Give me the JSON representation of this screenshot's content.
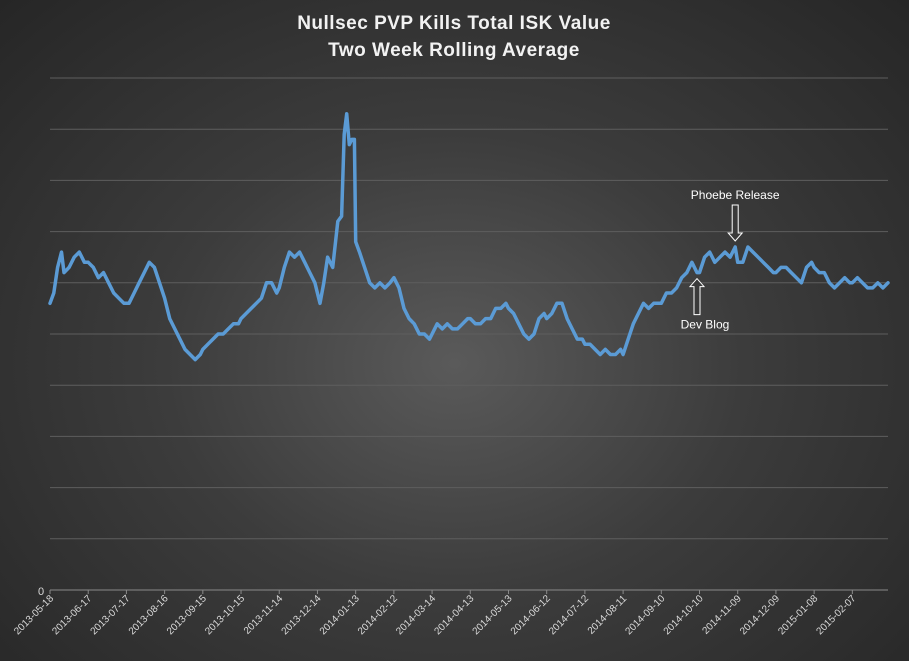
{
  "chart_data": {
    "type": "line",
    "title_lines": [
      "Nullsec  PVP  Kills  Total  ISK  Value",
      "Two  Week  Rolling  Average"
    ],
    "xlabel": "",
    "ylabel": "",
    "y_axis_label": "0",
    "x_tick_labels": [
      "2013-05-18",
      "2013-06-17",
      "2013-07-17",
      "2013-08-16",
      "2013-09-15",
      "2013-10-15",
      "2013-11-14",
      "2013-12-14",
      "2014-01-13",
      "2014-02-12",
      "2014-03-14",
      "2014-04-13",
      "2014-05-13",
      "2014-06-12",
      "2014-07-12",
      "2014-08-11",
      "2014-09-10",
      "2014-10-10",
      "2014-11-09",
      "2014-12-09",
      "2015-01-08",
      "2015-02-07"
    ],
    "ylim": [
      0,
      10
    ],
    "grid": true,
    "series": [
      {
        "color": "#5b9bd5",
        "points": [
          [
            "2013-05-18",
            5.6
          ],
          [
            "2013-05-21",
            5.8
          ],
          [
            "2013-05-24",
            6.3
          ],
          [
            "2013-05-27",
            6.6
          ],
          [
            "2013-05-29",
            6.2
          ],
          [
            "2013-06-02",
            6.3
          ],
          [
            "2013-06-06",
            6.5
          ],
          [
            "2013-06-10",
            6.6
          ],
          [
            "2013-06-14",
            6.4
          ],
          [
            "2013-06-17",
            6.4
          ],
          [
            "2013-06-21",
            6.3
          ],
          [
            "2013-06-25",
            6.1
          ],
          [
            "2013-06-29",
            6.2
          ],
          [
            "2013-07-03",
            6.0
          ],
          [
            "2013-07-07",
            5.8
          ],
          [
            "2013-07-11",
            5.7
          ],
          [
            "2013-07-15",
            5.6
          ],
          [
            "2013-07-19",
            5.6
          ],
          [
            "2013-07-23",
            5.8
          ],
          [
            "2013-07-27",
            6.0
          ],
          [
            "2013-07-31",
            6.2
          ],
          [
            "2013-08-04",
            6.4
          ],
          [
            "2013-08-08",
            6.3
          ],
          [
            "2013-08-12",
            6.0
          ],
          [
            "2013-08-16",
            5.7
          ],
          [
            "2013-08-20",
            5.3
          ],
          [
            "2013-08-24",
            5.1
          ],
          [
            "2013-08-28",
            4.9
          ],
          [
            "2013-09-01",
            4.7
          ],
          [
            "2013-09-05",
            4.6
          ],
          [
            "2013-09-09",
            4.5
          ],
          [
            "2013-09-13",
            4.6
          ],
          [
            "2013-09-15",
            4.7
          ],
          [
            "2013-09-19",
            4.8
          ],
          [
            "2013-09-23",
            4.9
          ],
          [
            "2013-09-27",
            5.0
          ],
          [
            "2013-10-01",
            5.0
          ],
          [
            "2013-10-05",
            5.1
          ],
          [
            "2013-10-09",
            5.2
          ],
          [
            "2013-10-13",
            5.2
          ],
          [
            "2013-10-15",
            5.3
          ],
          [
            "2013-10-19",
            5.4
          ],
          [
            "2013-10-23",
            5.5
          ],
          [
            "2013-10-27",
            5.6
          ],
          [
            "2013-10-31",
            5.7
          ],
          [
            "2013-11-04",
            6.0
          ],
          [
            "2013-11-08",
            6.0
          ],
          [
            "2013-11-12",
            5.8
          ],
          [
            "2013-11-14",
            5.9
          ],
          [
            "2013-11-18",
            6.3
          ],
          [
            "2013-11-22",
            6.6
          ],
          [
            "2013-11-26",
            6.5
          ],
          [
            "2013-11-30",
            6.6
          ],
          [
            "2013-12-04",
            6.4
          ],
          [
            "2013-12-08",
            6.2
          ],
          [
            "2013-12-12",
            6.0
          ],
          [
            "2013-12-14",
            5.8
          ],
          [
            "2013-12-16",
            5.6
          ],
          [
            "2013-12-19",
            6.0
          ],
          [
            "2013-12-22",
            6.5
          ],
          [
            "2013-12-26",
            6.3
          ],
          [
            "2013-12-30",
            7.2
          ],
          [
            "2014-01-02",
            7.3
          ],
          [
            "2014-01-04",
            8.9
          ],
          [
            "2014-01-06",
            9.3
          ],
          [
            "2014-01-08",
            8.7
          ],
          [
            "2014-01-10",
            8.8
          ],
          [
            "2014-01-12",
            8.8
          ],
          [
            "2014-01-13",
            6.8
          ],
          [
            "2014-01-16",
            6.6
          ],
          [
            "2014-01-20",
            6.3
          ],
          [
            "2014-01-24",
            6.0
          ],
          [
            "2014-01-28",
            5.9
          ],
          [
            "2014-02-01",
            6.0
          ],
          [
            "2014-02-05",
            5.9
          ],
          [
            "2014-02-09",
            6.0
          ],
          [
            "2014-02-12",
            6.1
          ],
          [
            "2014-02-16",
            5.9
          ],
          [
            "2014-02-20",
            5.5
          ],
          [
            "2014-02-24",
            5.3
          ],
          [
            "2014-02-28",
            5.2
          ],
          [
            "2014-03-04",
            5.0
          ],
          [
            "2014-03-08",
            5.0
          ],
          [
            "2014-03-12",
            4.9
          ],
          [
            "2014-03-14",
            5.0
          ],
          [
            "2014-03-18",
            5.2
          ],
          [
            "2014-03-22",
            5.1
          ],
          [
            "2014-03-26",
            5.2
          ],
          [
            "2014-03-30",
            5.1
          ],
          [
            "2014-04-03",
            5.1
          ],
          [
            "2014-04-07",
            5.2
          ],
          [
            "2014-04-11",
            5.3
          ],
          [
            "2014-04-13",
            5.3
          ],
          [
            "2014-04-17",
            5.2
          ],
          [
            "2014-04-21",
            5.2
          ],
          [
            "2014-04-25",
            5.3
          ],
          [
            "2014-04-29",
            5.3
          ],
          [
            "2014-05-03",
            5.5
          ],
          [
            "2014-05-07",
            5.5
          ],
          [
            "2014-05-11",
            5.6
          ],
          [
            "2014-05-13",
            5.5
          ],
          [
            "2014-05-17",
            5.4
          ],
          [
            "2014-05-21",
            5.2
          ],
          [
            "2014-05-25",
            5.0
          ],
          [
            "2014-05-29",
            4.9
          ],
          [
            "2014-06-02",
            5.0
          ],
          [
            "2014-06-06",
            5.3
          ],
          [
            "2014-06-10",
            5.4
          ],
          [
            "2014-06-12",
            5.3
          ],
          [
            "2014-06-16",
            5.4
          ],
          [
            "2014-06-20",
            5.6
          ],
          [
            "2014-06-24",
            5.6
          ],
          [
            "2014-06-28",
            5.3
          ],
          [
            "2014-07-02",
            5.1
          ],
          [
            "2014-07-06",
            4.9
          ],
          [
            "2014-07-10",
            4.9
          ],
          [
            "2014-07-12",
            4.8
          ],
          [
            "2014-07-16",
            4.8
          ],
          [
            "2014-07-20",
            4.7
          ],
          [
            "2014-07-24",
            4.6
          ],
          [
            "2014-07-28",
            4.7
          ],
          [
            "2014-08-01",
            4.6
          ],
          [
            "2014-08-05",
            4.6
          ],
          [
            "2014-08-09",
            4.7
          ],
          [
            "2014-08-11",
            4.6
          ],
          [
            "2014-08-15",
            4.9
          ],
          [
            "2014-08-19",
            5.2
          ],
          [
            "2014-08-23",
            5.4
          ],
          [
            "2014-08-27",
            5.6
          ],
          [
            "2014-08-31",
            5.5
          ],
          [
            "2014-09-04",
            5.6
          ],
          [
            "2014-09-08",
            5.6
          ],
          [
            "2014-09-10",
            5.6
          ],
          [
            "2014-09-14",
            5.8
          ],
          [
            "2014-09-18",
            5.8
          ],
          [
            "2014-09-22",
            5.9
          ],
          [
            "2014-09-26",
            6.1
          ],
          [
            "2014-09-30",
            6.2
          ],
          [
            "2014-10-04",
            6.4
          ],
          [
            "2014-10-08",
            6.2
          ],
          [
            "2014-10-10",
            6.2
          ],
          [
            "2014-10-14",
            6.5
          ],
          [
            "2014-10-18",
            6.6
          ],
          [
            "2014-10-22",
            6.4
          ],
          [
            "2014-10-26",
            6.5
          ],
          [
            "2014-10-30",
            6.6
          ],
          [
            "2014-11-03",
            6.5
          ],
          [
            "2014-11-07",
            6.7
          ],
          [
            "2014-11-09",
            6.4
          ],
          [
            "2014-11-13",
            6.4
          ],
          [
            "2014-11-17",
            6.7
          ],
          [
            "2014-11-21",
            6.6
          ],
          [
            "2014-11-25",
            6.5
          ],
          [
            "2014-11-29",
            6.4
          ],
          [
            "2014-12-03",
            6.3
          ],
          [
            "2014-12-07",
            6.2
          ],
          [
            "2014-12-09",
            6.2
          ],
          [
            "2014-12-13",
            6.3
          ],
          [
            "2014-12-17",
            6.3
          ],
          [
            "2014-12-21",
            6.2
          ],
          [
            "2014-12-25",
            6.1
          ],
          [
            "2014-12-29",
            6.0
          ],
          [
            "2015-01-02",
            6.3
          ],
          [
            "2015-01-06",
            6.4
          ],
          [
            "2015-01-08",
            6.3
          ],
          [
            "2015-01-12",
            6.2
          ],
          [
            "2015-01-16",
            6.2
          ],
          [
            "2015-01-20",
            6.0
          ],
          [
            "2015-01-24",
            5.9
          ],
          [
            "2015-01-28",
            6.0
          ],
          [
            "2015-02-01",
            6.1
          ],
          [
            "2015-02-05",
            6.0
          ],
          [
            "2015-02-07",
            6.0
          ],
          [
            "2015-02-11",
            6.1
          ],
          [
            "2015-02-15",
            6.0
          ],
          [
            "2015-02-19",
            5.9
          ],
          [
            "2015-02-23",
            5.9
          ],
          [
            "2015-02-27",
            6.0
          ],
          [
            "2015-03-03",
            5.9
          ],
          [
            "2015-03-07",
            6.0
          ]
        ]
      }
    ],
    "annotations": [
      {
        "text": "Phoebe Release",
        "x": "2014-11-07",
        "direction": "down"
      },
      {
        "text": "Dev Blog",
        "x": "2014-10-08",
        "direction": "up"
      }
    ]
  }
}
